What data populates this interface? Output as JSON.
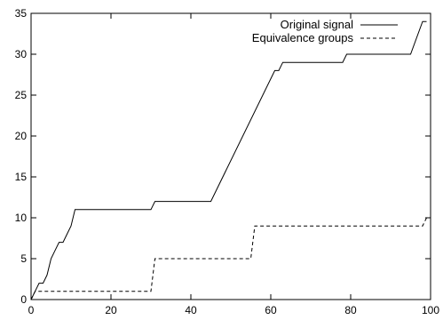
{
  "chart_data": {
    "type": "line",
    "title": "",
    "xlabel": "",
    "ylabel": "",
    "xlim": [
      0,
      100
    ],
    "ylim": [
      0,
      35
    ],
    "x_ticks": [
      "0",
      "20",
      "40",
      "60",
      "80",
      "100"
    ],
    "y_ticks": [
      "0",
      "5",
      "10",
      "15",
      "20",
      "25",
      "30",
      "35"
    ],
    "grid": false,
    "legend_position": "top-right",
    "series": [
      {
        "name": "Original signal",
        "style": "solid",
        "color": "#000000",
        "points": [
          [
            0,
            0
          ],
          [
            1,
            1
          ],
          [
            2,
            2
          ],
          [
            3,
            2
          ],
          [
            4,
            3
          ],
          [
            5,
            5
          ],
          [
            6,
            6
          ],
          [
            7,
            7
          ],
          [
            8,
            7
          ],
          [
            9,
            8
          ],
          [
            10,
            9
          ],
          [
            11,
            11
          ],
          [
            30,
            11
          ],
          [
            31,
            12
          ],
          [
            45,
            12
          ],
          [
            61,
            28
          ],
          [
            62,
            28
          ],
          [
            63,
            29
          ],
          [
            78,
            29
          ],
          [
            79,
            30
          ],
          [
            95,
            30
          ],
          [
            98,
            34
          ],
          [
            99,
            34
          ]
        ]
      },
      {
        "name": "Equivalence groups",
        "style": "dashed",
        "color": "#000000",
        "points": [
          [
            0,
            0
          ],
          [
            1,
            1
          ],
          [
            30,
            1
          ],
          [
            31,
            5
          ],
          [
            55,
            5
          ],
          [
            56,
            9
          ],
          [
            98,
            9
          ],
          [
            99,
            10
          ]
        ]
      }
    ]
  }
}
